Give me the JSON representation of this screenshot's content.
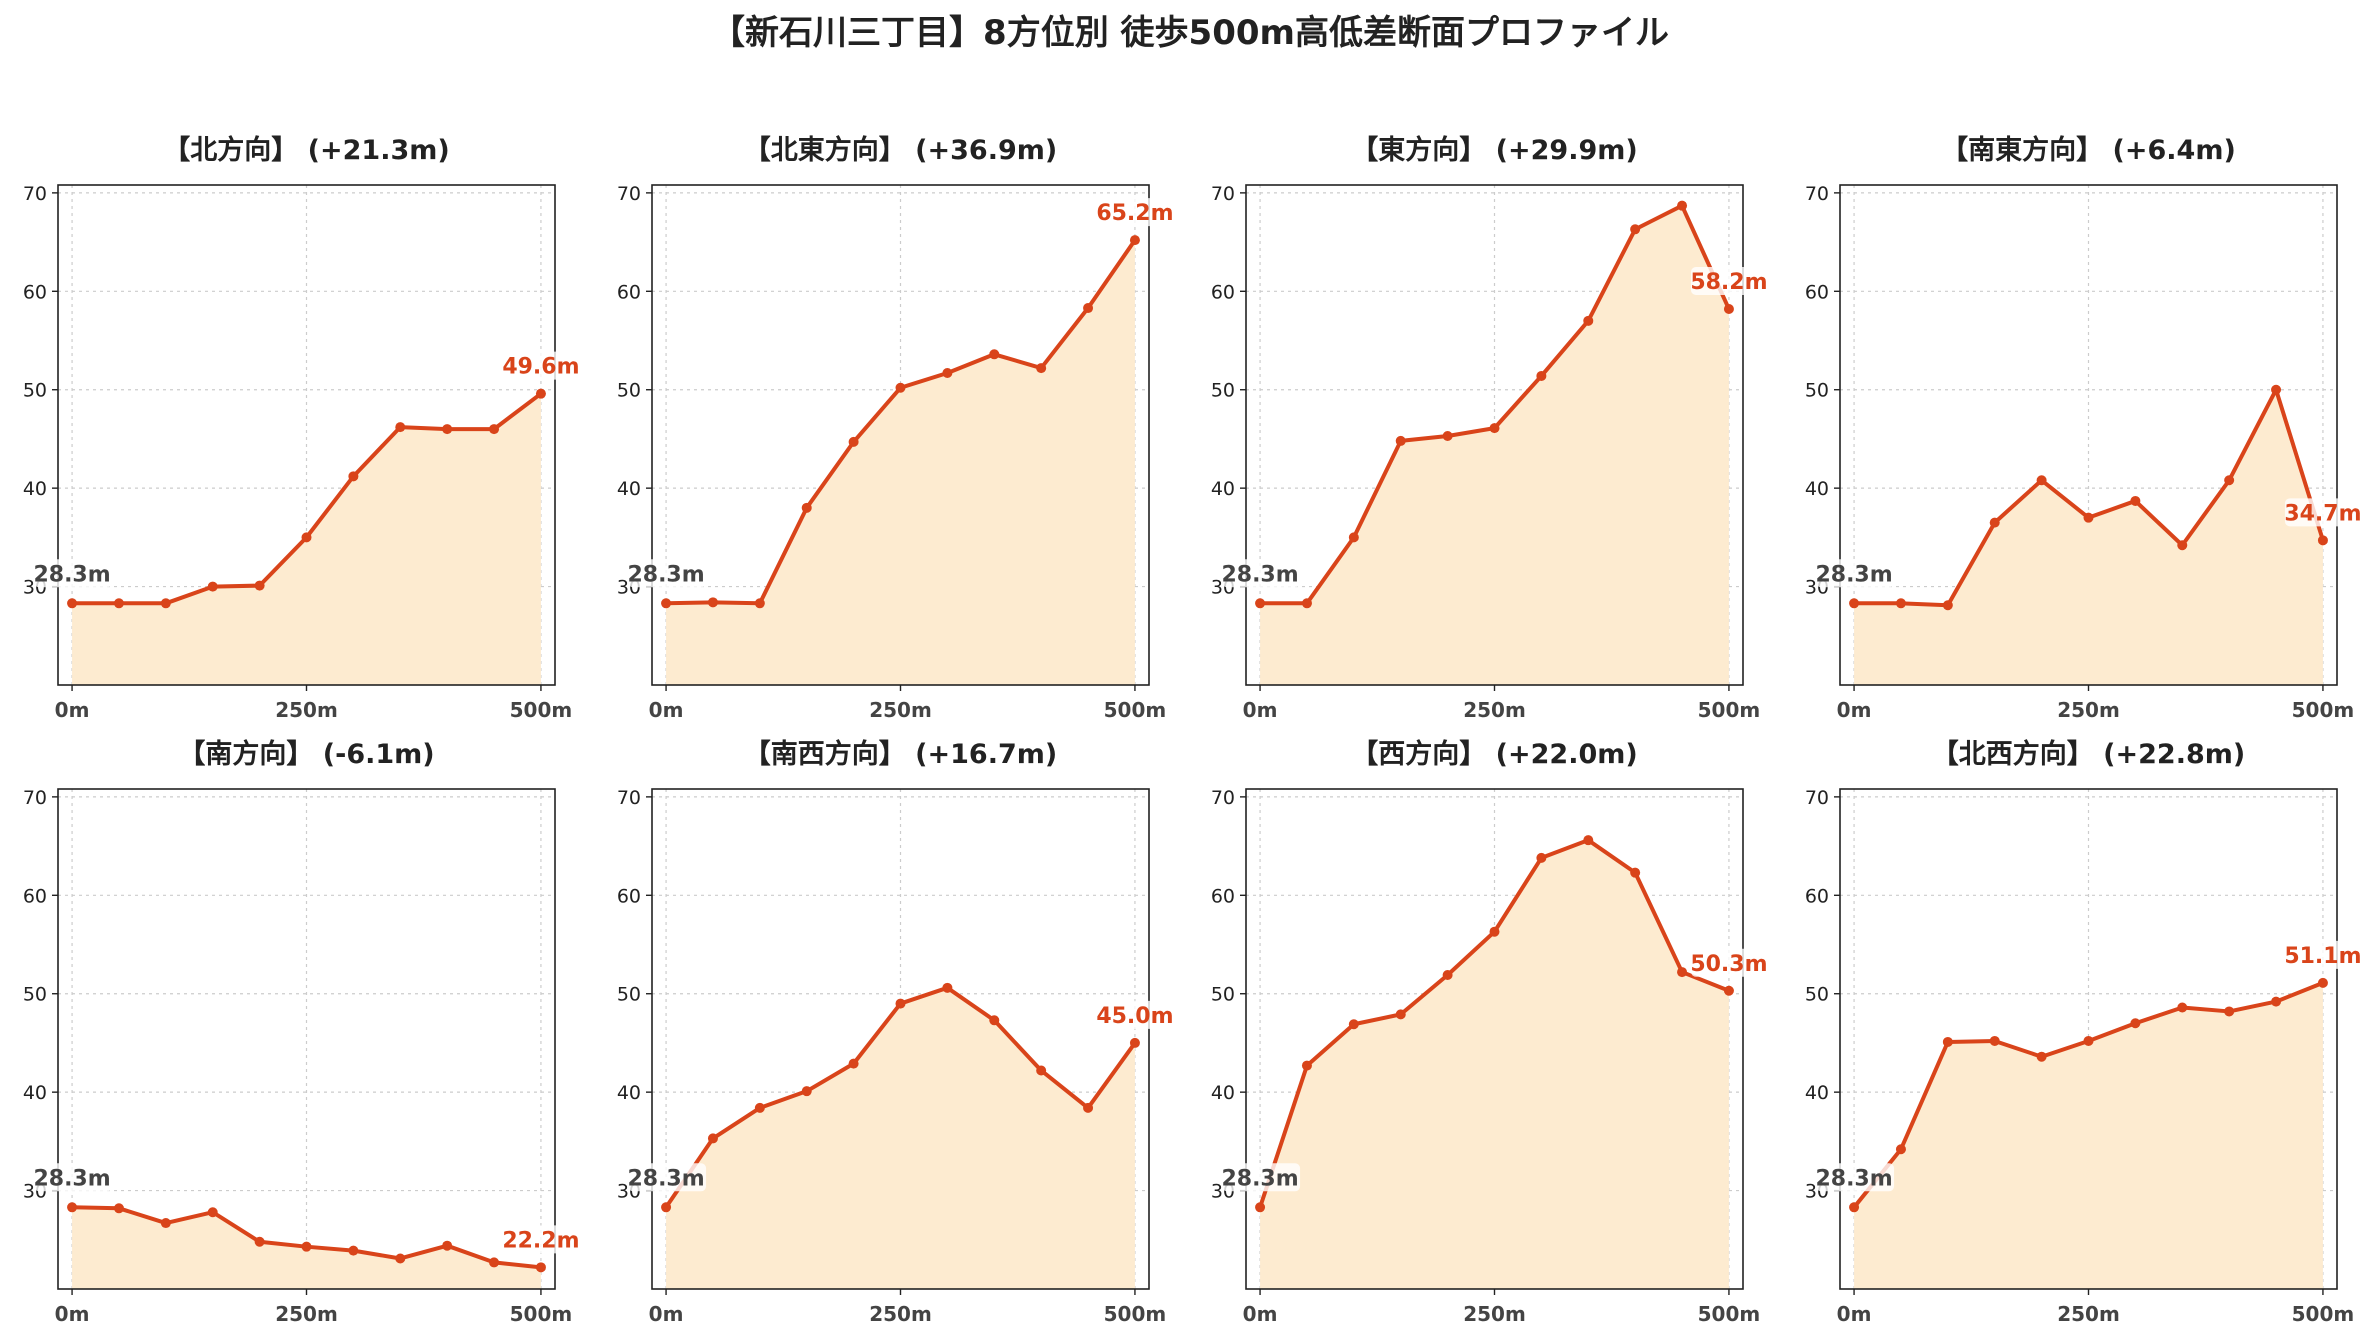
{
  "title": "【新石川三丁目】8方位別 徒歩500m高低差断面プロファイル",
  "colors": {
    "line": "#d9441a",
    "fill": "#fdebd0",
    "start_label": "#444444",
    "end_label": "#d9441a",
    "grid": "#cccccc"
  },
  "chart_data": [
    {
      "type": "area",
      "title": "【北方向】 (+21.3m)",
      "x": [
        0,
        50,
        100,
        150,
        200,
        250,
        300,
        350,
        400,
        450,
        500
      ],
      "values": [
        28.3,
        28.3,
        28.3,
        30.0,
        30.1,
        35.0,
        41.2,
        46.2,
        46.0,
        46.0,
        49.6
      ],
      "xtick_labels": [
        "0m",
        "250m",
        "500m"
      ],
      "ytick_labels": [
        "30",
        "40",
        "50",
        "60",
        "70"
      ],
      "start_label": "28.3m",
      "end_label": "49.6m",
      "xlim": [
        -15,
        515
      ],
      "ylim": [
        20,
        70.8
      ],
      "grid": true
    },
    {
      "type": "area",
      "title": "【北東方向】 (+36.9m)",
      "x": [
        0,
        50,
        100,
        150,
        200,
        250,
        300,
        350,
        400,
        450,
        500
      ],
      "values": [
        28.3,
        28.4,
        28.3,
        38.0,
        44.7,
        50.2,
        51.7,
        53.6,
        52.2,
        58.3,
        65.2
      ],
      "xtick_labels": [
        "0m",
        "250m",
        "500m"
      ],
      "ytick_labels": [
        "30",
        "40",
        "50",
        "60",
        "70"
      ],
      "start_label": "28.3m",
      "end_label": "65.2m",
      "xlim": [
        -15,
        515
      ],
      "ylim": [
        20,
        70.8
      ],
      "grid": true
    },
    {
      "type": "area",
      "title": "【東方向】 (+29.9m)",
      "x": [
        0,
        50,
        100,
        150,
        200,
        250,
        300,
        350,
        400,
        450,
        500
      ],
      "values": [
        28.3,
        28.3,
        35.0,
        44.8,
        45.3,
        46.1,
        51.4,
        57.0,
        66.3,
        68.7,
        58.2
      ],
      "xtick_labels": [
        "0m",
        "250m",
        "500m"
      ],
      "ytick_labels": [
        "30",
        "40",
        "50",
        "60",
        "70"
      ],
      "start_label": "28.3m",
      "end_label": "58.2m",
      "xlim": [
        -15,
        515
      ],
      "ylim": [
        20,
        70.8
      ],
      "grid": true
    },
    {
      "type": "area",
      "title": "【南東方向】 (+6.4m)",
      "x": [
        0,
        50,
        100,
        150,
        200,
        250,
        300,
        350,
        400,
        450,
        500
      ],
      "values": [
        28.3,
        28.3,
        28.1,
        36.5,
        40.8,
        37.0,
        38.7,
        34.2,
        40.8,
        50.0,
        34.7
      ],
      "xtick_labels": [
        "0m",
        "250m",
        "500m"
      ],
      "ytick_labels": [
        "30",
        "40",
        "50",
        "60",
        "70"
      ],
      "start_label": "28.3m",
      "end_label": "34.7m",
      "xlim": [
        -15,
        515
      ],
      "ylim": [
        20,
        70.8
      ],
      "grid": true
    },
    {
      "type": "area",
      "title": "【南方向】 (-6.1m)",
      "x": [
        0,
        50,
        100,
        150,
        200,
        250,
        300,
        350,
        400,
        450,
        500
      ],
      "values": [
        28.3,
        28.2,
        26.7,
        27.8,
        24.8,
        24.3,
        23.9,
        23.1,
        24.4,
        22.7,
        22.2
      ],
      "xtick_labels": [
        "0m",
        "250m",
        "500m"
      ],
      "ytick_labels": [
        "30",
        "40",
        "50",
        "60",
        "70"
      ],
      "start_label": "28.3m",
      "end_label": "22.2m",
      "xlim": [
        -15,
        515
      ],
      "ylim": [
        20,
        70.8
      ],
      "grid": true
    },
    {
      "type": "area",
      "title": "【南西方向】 (+16.7m)",
      "x": [
        0,
        50,
        100,
        150,
        200,
        250,
        300,
        350,
        400,
        450,
        500
      ],
      "values": [
        28.3,
        35.3,
        38.4,
        40.1,
        42.9,
        49.0,
        50.6,
        47.3,
        42.2,
        38.4,
        45.0
      ],
      "xtick_labels": [
        "0m",
        "250m",
        "500m"
      ],
      "ytick_labels": [
        "30",
        "40",
        "50",
        "60",
        "70"
      ],
      "start_label": "28.3m",
      "end_label": "45.0m",
      "xlim": [
        -15,
        515
      ],
      "ylim": [
        20,
        70.8
      ],
      "grid": true
    },
    {
      "type": "area",
      "title": "【西方向】 (+22.0m)",
      "x": [
        0,
        50,
        100,
        150,
        200,
        250,
        300,
        350,
        400,
        450,
        500
      ],
      "values": [
        28.3,
        42.7,
        46.9,
        47.9,
        51.9,
        56.3,
        63.8,
        65.6,
        62.3,
        52.2,
        50.3
      ],
      "xtick_labels": [
        "0m",
        "250m",
        "500m"
      ],
      "ytick_labels": [
        "30",
        "40",
        "50",
        "60",
        "70"
      ],
      "start_label": "28.3m",
      "end_label": "50.3m",
      "xlim": [
        -15,
        515
      ],
      "ylim": [
        20,
        70.8
      ],
      "grid": true
    },
    {
      "type": "area",
      "title": "【北西方向】 (+22.8m)",
      "x": [
        0,
        50,
        100,
        150,
        200,
        250,
        300,
        350,
        400,
        450,
        500
      ],
      "values": [
        28.3,
        34.2,
        45.1,
        45.2,
        43.6,
        45.2,
        47.0,
        48.6,
        48.2,
        49.2,
        51.1
      ],
      "xtick_labels": [
        "0m",
        "250m",
        "500m"
      ],
      "ytick_labels": [
        "30",
        "40",
        "50",
        "60",
        "70"
      ],
      "start_label": "28.3m",
      "end_label": "51.1m",
      "xlim": [
        -15,
        515
      ],
      "ylim": [
        20,
        70.8
      ],
      "grid": true
    }
  ]
}
